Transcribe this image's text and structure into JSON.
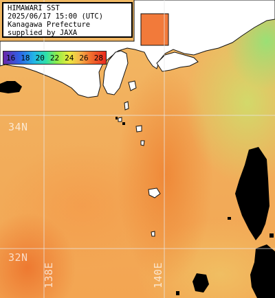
{
  "title_box": {
    "lines": [
      "HIMAWARI SST",
      "2025/06/17 15:00 (UTC)",
      "Kanagawa Prefecture",
      "supplied by JAXA"
    ]
  },
  "color_scale": {
    "ticks": [
      "16",
      "18",
      "20",
      "22",
      "24",
      "26",
      "28"
    ],
    "unit": ""
  },
  "grid_labels": {
    "lat_34": "34N",
    "lat_32": "32N",
    "lon_138": "138E",
    "lon_140": "140E"
  },
  "colors": {
    "land": "#ffffff",
    "cloud_mask": "#000000",
    "grid": "#e8e8e8"
  }
}
